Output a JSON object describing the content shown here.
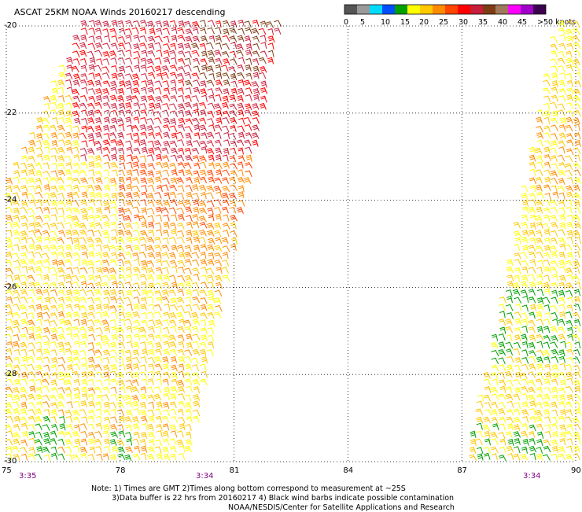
{
  "title": "ASCAT 25KM NOAA Winds 20160217 descending",
  "colorbar": {
    "segments": [
      "#555555",
      "#9a9a9a",
      "#00dcff",
      "#0050ff",
      "#00a000",
      "#ffff00",
      "#ffc800",
      "#ff8c00",
      "#ff4500",
      "#ff0000",
      "#c81e3c",
      "#7d3c14",
      "#a0785a",
      "#ff00ff",
      "#a000c8",
      "#3c0050"
    ],
    "labels": [
      "0",
      "5",
      "10",
      "15",
      "20",
      "25",
      "30",
      "35",
      "40",
      "45",
      ">50 knots"
    ]
  },
  "axes": {
    "y_labels": [
      "-20",
      "-22",
      "-24",
      "-26",
      "-28",
      "-30"
    ],
    "x_labels": [
      "75",
      "78",
      "81",
      "84",
      "87",
      "90"
    ],
    "times": [
      "3:35",
      "3:34",
      "3:34"
    ]
  },
  "notes": [
    "Note: 1) Times are GMT 2)Times along bottom correspond to measurement at ~25S",
    "3)Data buffer is 22 hrs from 20160217 4) Black wind barbs indicate possible contamination",
    "NOAA/NESDIS/Center for Satellite Applications and Research"
  ],
  "colors": {
    "axis_label": "#000000",
    "time_label": "#800080",
    "grid": "#000000",
    "barb_yellow": "#ffff00",
    "barb_gold": "#ffc800",
    "barb_orange": "#ff8c00",
    "barb_redorange": "#ff4500",
    "barb_red": "#ff0000",
    "barb_crimson": "#c81e3c",
    "barb_brown": "#7d3c14",
    "barb_green": "#00a000"
  }
}
